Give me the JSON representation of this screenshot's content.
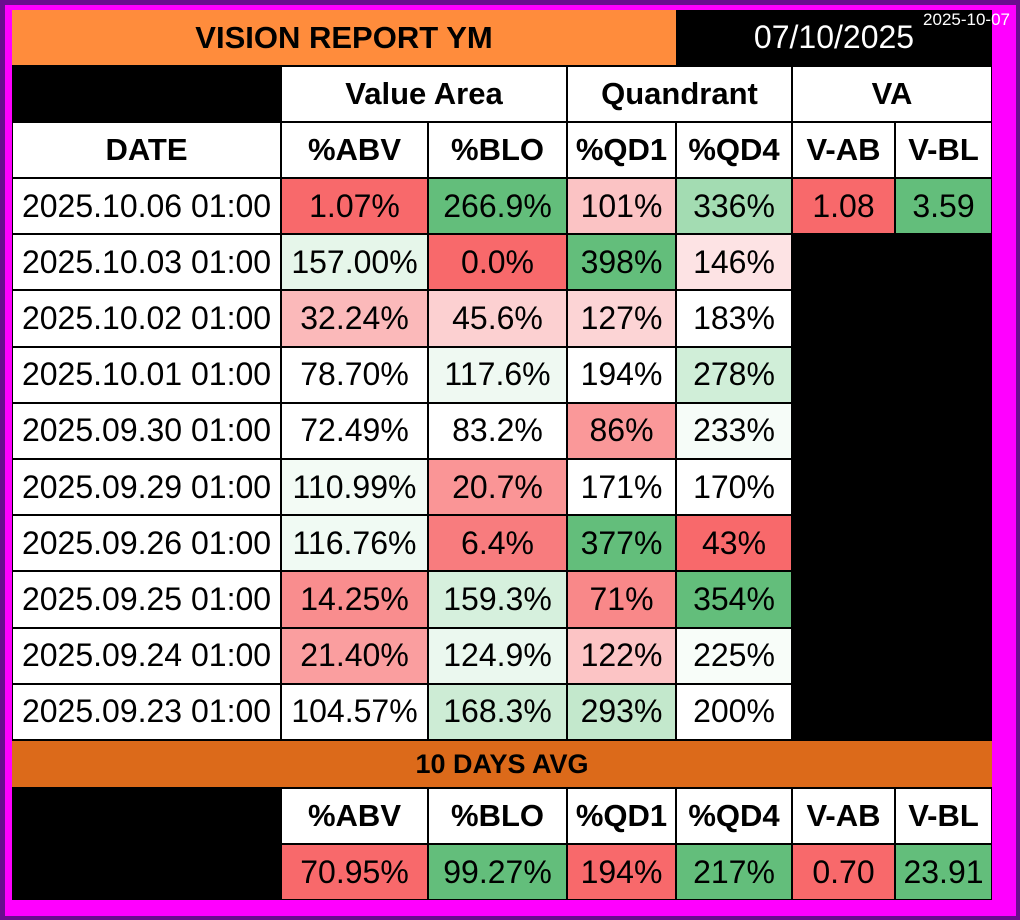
{
  "report": {
    "title": "VISION REPORT YM",
    "date": "07/10/2025",
    "stamp": "2025-10-07"
  },
  "groups": {
    "value_area": "Value Area",
    "quadrant": "Quandrant",
    "va": "VA"
  },
  "columns": {
    "date": "DATE",
    "abv": "%ABV",
    "blo": "%BLO",
    "qd1": "%QD1",
    "qd4": "%QD4",
    "vab": "V-AB",
    "vbl": "V-BL"
  },
  "rows": [
    {
      "date": "2025.10.06 01:00",
      "abv": "1.07%",
      "blo": "266.9%",
      "qd1": "101%",
      "qd4": "336%"
    },
    {
      "date": "2025.10.03 01:00",
      "abv": "157.00%",
      "blo": "0.0%",
      "qd1": "398%",
      "qd4": "146%"
    },
    {
      "date": "2025.10.02 01:00",
      "abv": "32.24%",
      "blo": "45.6%",
      "qd1": "127%",
      "qd4": "183%"
    },
    {
      "date": "2025.10.01 01:00",
      "abv": "78.70%",
      "blo": "117.6%",
      "qd1": "194%",
      "qd4": "278%"
    },
    {
      "date": "2025.09.30 01:00",
      "abv": "72.49%",
      "blo": "83.2%",
      "qd1": "86%",
      "qd4": "233%"
    },
    {
      "date": "2025.09.29 01:00",
      "abv": "110.99%",
      "blo": "20.7%",
      "qd1": "171%",
      "qd4": "170%"
    },
    {
      "date": "2025.09.26 01:00",
      "abv": "116.76%",
      "blo": "6.4%",
      "qd1": "377%",
      "qd4": "43%"
    },
    {
      "date": "2025.09.25 01:00",
      "abv": "14.25%",
      "blo": "159.3%",
      "qd1": "71%",
      "qd4": "354%"
    },
    {
      "date": "2025.09.24 01:00",
      "abv": "21.40%",
      "blo": "124.9%",
      "qd1": "122%",
      "qd4": "225%"
    },
    {
      "date": "2025.09.23 01:00",
      "abv": "104.57%",
      "blo": "168.3%",
      "qd1": "293%",
      "qd4": "200%"
    }
  ],
  "va_values": {
    "vab": "1.08",
    "vbl": "3.59"
  },
  "avg": {
    "label": "10 DAYS AVG",
    "abv": "70.95%",
    "blo": "99.27%",
    "qd1": "194%",
    "qd4": "217%",
    "vab": "0.70",
    "vbl": "23.91"
  },
  "colors": {
    "title_bg": "#ff8c3c",
    "avg_banner_bg": "#dc6a1a",
    "frame": "#6a0d8f",
    "border": "#ff00ff",
    "row_bg": [
      [
        "#f8696b",
        "#63be7b",
        "#fbc3c4",
        "#a3dcb2"
      ],
      [
        "#e6f6ea",
        "#f8696b",
        "#63be7b",
        "#fde3e4"
      ],
      [
        "#fbb9ba",
        "#fcd0d1",
        "#fcd4d5",
        "#ffffff"
      ],
      [
        "#ffffff",
        "#eff9f2",
        "#ffffff",
        "#d0eed8"
      ],
      [
        "#ffffff",
        "#ffffff",
        "#fa9899",
        "#f6fcf8"
      ],
      [
        "#f3fbf5",
        "#fa9596",
        "#ffffff",
        "#ffffff"
      ],
      [
        "#f0faf3",
        "#f87c7e",
        "#63be7b",
        "#f8696b"
      ],
      [
        "#f98d8e",
        "#d6f0dd",
        "#f98889",
        "#63be7b"
      ],
      [
        "#fa9e9f",
        "#ebf8ef",
        "#fcc4c5",
        "#f8fdf9"
      ],
      [
        "#ffffff",
        "#cdecd5",
        "#c3e8cc",
        "#ffffff"
      ]
    ],
    "va_bg": [
      "#f8696b",
      "#63be7b"
    ],
    "avg_bg": [
      "#f8696b",
      "#63be7b",
      "#f8696b",
      "#63be7b",
      "#f8696b",
      "#63be7b"
    ]
  }
}
